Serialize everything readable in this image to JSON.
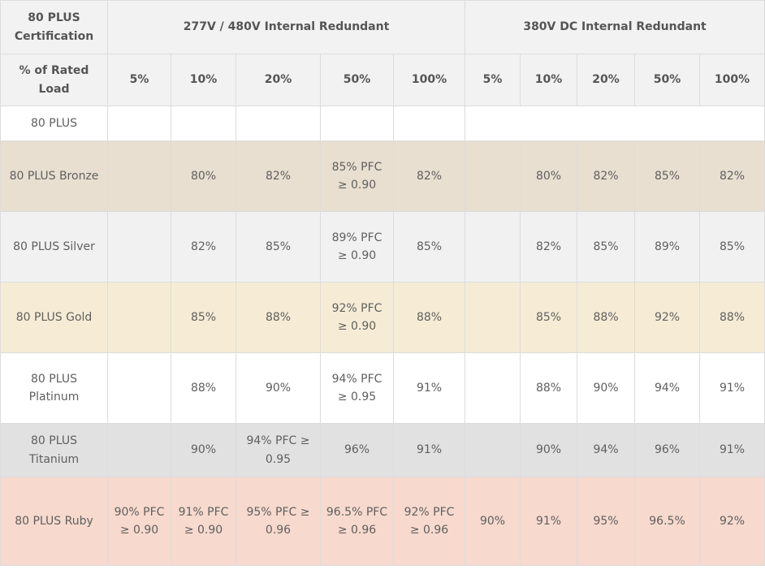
{
  "header": {
    "certification_label": "80 PLUS Certification",
    "group_ac_label": "277V / 480V Internal Redundant",
    "group_dc_label": "380V DC Internal Redundant",
    "load_label": "% of Rated Load",
    "ac_loads": [
      "5%",
      "10%",
      "20%",
      "50%",
      "100%"
    ],
    "dc_loads": [
      "5%",
      "10%",
      "20%",
      "50%",
      "100%"
    ]
  },
  "rows": [
    {
      "name": "80 PLUS",
      "ac": [
        "",
        "",
        "",
        "",
        ""
      ],
      "dc": [
        "",
        "",
        "",
        "",
        ""
      ]
    },
    {
      "name": "80 PLUS Bronze",
      "ac": [
        "",
        "80%",
        "82%",
        "85% PFC ≥ 0.90",
        "82%"
      ],
      "dc": [
        "",
        "80%",
        "82%",
        "85%",
        "82%"
      ]
    },
    {
      "name": "80 PLUS Silver",
      "ac": [
        "",
        "82%",
        "85%",
        "89% PFC ≥ 0.90",
        "85%"
      ],
      "dc": [
        "",
        "82%",
        "85%",
        "89%",
        "85%"
      ]
    },
    {
      "name": "80 PLUS Gold",
      "ac": [
        "",
        "85%",
        "88%",
        "92% PFC ≥ 0.90",
        "88%"
      ],
      "dc": [
        "",
        "85%",
        "88%",
        "92%",
        "88%"
      ]
    },
    {
      "name": "80 PLUS Platinum",
      "ac": [
        "",
        "88%",
        "90%",
        "94% PFC ≥ 0.95",
        "91%"
      ],
      "dc": [
        "",
        "88%",
        "90%",
        "94%",
        "91%"
      ]
    },
    {
      "name": "80 PLUS Titanium",
      "ac": [
        "",
        "90%",
        "94% PFC ≥ 0.95",
        "96%",
        "91%"
      ],
      "dc": [
        "",
        "90%",
        "94%",
        "96%",
        "91%"
      ]
    },
    {
      "name": "80 PLUS Ruby",
      "ac": [
        "90% PFC ≥ 0.90",
        "91% PFC ≥ 0.90",
        "95% PFC ≥ 0.96",
        "96.5% PFC ≥ 0.96",
        "92% PFC ≥ 0.96"
      ],
      "dc": [
        "90%",
        "91%",
        "95%",
        "96.5%",
        "92%"
      ]
    }
  ],
  "row_colors": {
    "80 PLUS": "#ffffff",
    "80 PLUS Bronze": "#e8dfd0",
    "80 PLUS Silver": "#f1f1f1",
    "80 PLUS Gold": "#f6ecd5",
    "80 PLUS Platinum": "#ffffff",
    "80 PLUS Titanium": "#e0e1e0",
    "80 PLUS Ruby": "#f7d9ce"
  }
}
